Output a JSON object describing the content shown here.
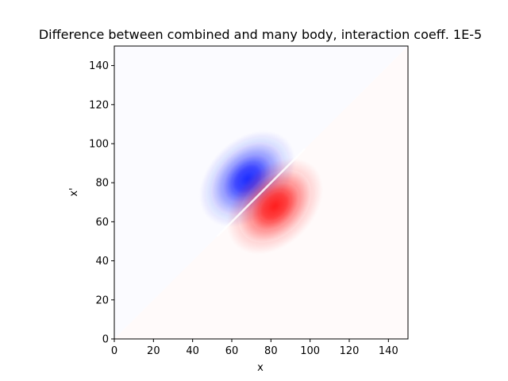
{
  "chart_data": {
    "type": "heatmap",
    "title": "Difference between combined and many body, interaction coeff. 1E-5",
    "xlabel": "x",
    "ylabel": "x'",
    "xlim": [
      0,
      150
    ],
    "ylim": [
      0,
      150
    ],
    "x_ticks": [
      0,
      20,
      40,
      60,
      80,
      100,
      120,
      140
    ],
    "y_ticks": [
      0,
      20,
      40,
      60,
      80,
      100,
      120,
      140
    ],
    "colormap": "bwr",
    "colors": {
      "positive": "#ff0000",
      "negative": "#0000ff",
      "zero": "#ffffff"
    },
    "grid": false,
    "legend": "none",
    "features": [
      {
        "name": "negative-lobe",
        "center_x": 68,
        "center_y": 82,
        "sign": "negative",
        "peak_color": "#1f2bff"
      },
      {
        "name": "positive-lobe",
        "center_x": 82,
        "center_y": 68,
        "sign": "positive",
        "peak_color": "#ff1f1f"
      }
    ],
    "background": {
      "below_diagonal": "slightly positive",
      "above_diagonal": "slightly negative"
    }
  }
}
